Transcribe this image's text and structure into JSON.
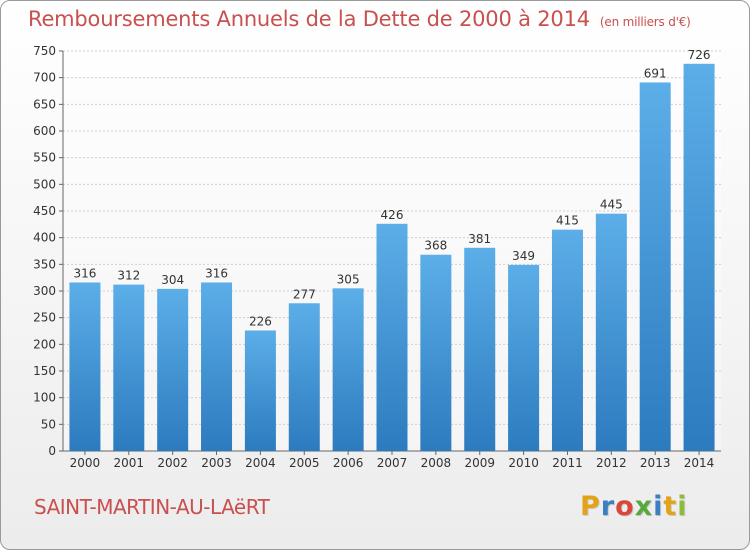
{
  "header": {
    "title": "Remboursements Annuels de la Dette de 2000 à 2014",
    "unit": "(en milliers d'€)"
  },
  "footer": {
    "commune": "SAINT-MARTIN-AU-LAëRT",
    "logo_letters": [
      "P",
      "r",
      "o",
      "x",
      "i",
      "t",
      "i"
    ],
    "logo_colors": [
      "#e2a317",
      "#3b7ec4",
      "#d9473b",
      "#58a83d",
      "#3b7ec4",
      "#e2a317",
      "#8dbb3a"
    ]
  },
  "colors": {
    "bar_light": "#5caee8",
    "bar_dark": "#2c7bbf",
    "grid": "#cfcfcf",
    "accent": "#c8504e"
  },
  "chart_data": {
    "type": "bar",
    "title": "Remboursements Annuels de la Dette de 2000 à 2014",
    "subtitle": "(en milliers d'€)",
    "categories": [
      "2000",
      "2001",
      "2002",
      "2003",
      "2004",
      "2005",
      "2006",
      "2007",
      "2008",
      "2009",
      "2010",
      "2011",
      "2012",
      "2013",
      "2014"
    ],
    "values": [
      316,
      312,
      304,
      316,
      226,
      277,
      305,
      426,
      368,
      381,
      349,
      415,
      445,
      691,
      726
    ],
    "ylim": [
      0,
      750
    ],
    "yticks": [
      0,
      50,
      100,
      150,
      200,
      250,
      300,
      350,
      400,
      450,
      500,
      550,
      600,
      650,
      700,
      750
    ],
    "grid": true,
    "data_labels": true
  }
}
